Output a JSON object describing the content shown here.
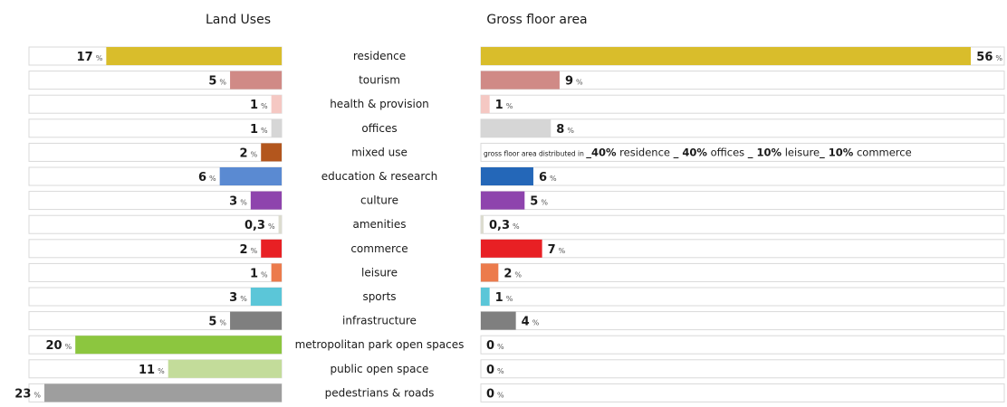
{
  "chart_data": [
    {
      "type": "bar",
      "orientation": "horizontal",
      "title": "Land Uses",
      "categories": [
        "residence",
        "tourism",
        "health & provision",
        "offices",
        "mixed use",
        "education & research",
        "culture",
        "amenities",
        "commerce",
        "leisure",
        "sports",
        "infrastructure",
        "metropolitan park open spaces",
        "public open space",
        "pedestrians & roads"
      ],
      "labels": [
        "17",
        "5",
        "1",
        "1",
        "2",
        "6",
        "3",
        "0,3",
        "2",
        "1",
        "3",
        "5",
        "20",
        "11",
        "23"
      ],
      "values": [
        17,
        5,
        1,
        1,
        2,
        6,
        3,
        0.3,
        2,
        1,
        3,
        5,
        20,
        11,
        23
      ],
      "unit": "%",
      "xlim": [
        0,
        23
      ]
    },
    {
      "type": "bar",
      "orientation": "horizontal",
      "title": "Gross floor area",
      "categories": [
        "residence",
        "tourism",
        "health & provision",
        "offices",
        "mixed use",
        "education & research",
        "culture",
        "amenities",
        "commerce",
        "leisure",
        "sports",
        "infrastructure",
        "metropolitan park open spaces",
        "public open space",
        "pedestrians & roads"
      ],
      "labels": [
        "56",
        "9",
        "1",
        "8",
        "",
        "6",
        "5",
        "0,3",
        "7",
        "2",
        "1",
        "4",
        "0",
        "0",
        "0"
      ],
      "values": [
        56,
        9,
        1,
        8,
        null,
        6,
        5,
        0.3,
        7,
        2,
        1,
        4,
        0,
        0,
        0
      ],
      "unit": "%",
      "xlim": [
        0,
        56
      ],
      "annotations": [
        {
          "category": "mixed use",
          "prefix": "gross floor area distributed in ",
          "parts": [
            {
              "value": "_40%",
              "text": " residence "
            },
            {
              "value": "_ 40%",
              "text": " offices "
            },
            {
              "value": "_ 10%",
              "text": " leisure"
            },
            {
              "value": "_ 10%",
              "text": " commerce"
            }
          ]
        }
      ]
    }
  ],
  "colors": [
    "#d9bd2b",
    "#d08a86",
    "#f5c8c3",
    "#d6d6d6",
    "#b3561d",
    "#5a8ad2",
    "#8e44ad",
    "#dcdccf",
    "#e82024",
    "#ec7b4c",
    "#5bc6d8",
    "#7f7f7f",
    "#8cc63f",
    "#c3dc9a",
    "#9e9e9e"
  ],
  "colors_right": [
    "#d9bd2b",
    "#d08a86",
    "#f5c8c3",
    "#d6d6d6",
    "#b3561d",
    "#2467b8",
    "#8e44ad",
    "#dcdccf",
    "#e82024",
    "#ec7b4c",
    "#5bc6d8",
    "#7f7f7f",
    "#8cc63f",
    "#c3dc9a",
    "#9e9e9e"
  ]
}
